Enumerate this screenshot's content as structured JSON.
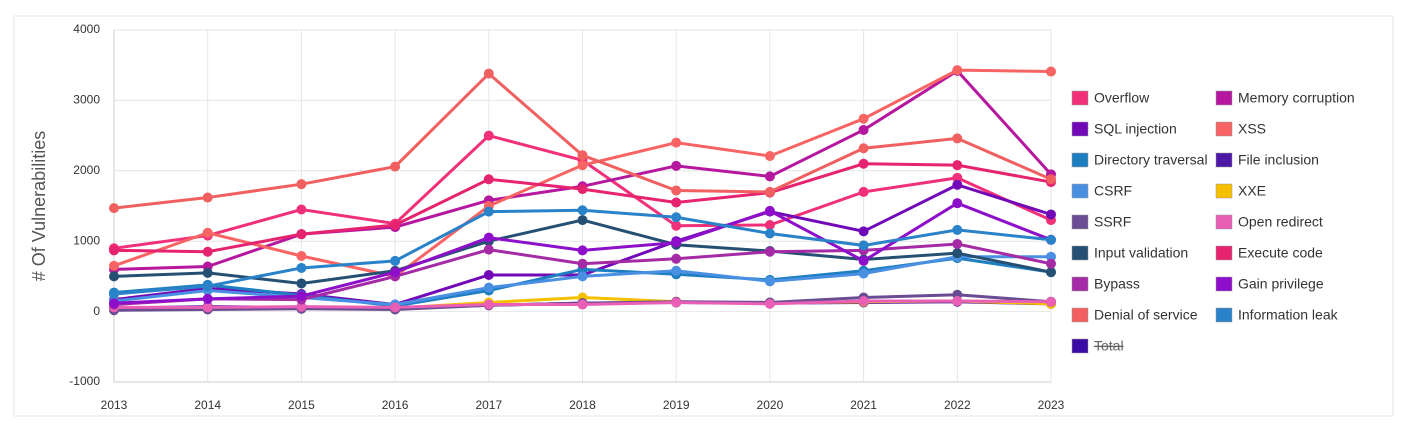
{
  "chart_data": {
    "type": "line",
    "y_label": "# Of Vulnerabilities",
    "x": [
      "2013",
      "2014",
      "2015",
      "2016",
      "2017",
      "2018",
      "2019",
      "2020",
      "2021",
      "2022",
      "2023"
    ],
    "ylim": [
      -1000,
      4000
    ],
    "yticks": [
      -1000,
      0,
      1000,
      2000,
      3000,
      4000
    ],
    "grid": true,
    "series": [
      {
        "name": "Overflow",
        "color": "#f0317a",
        "values": [
          900,
          1080,
          1450,
          1250,
          2500,
          2150,
          1220,
          1230,
          1700,
          1900,
          1300
        ]
      },
      {
        "name": "Memory corruption",
        "color": "#b5179e",
        "values": [
          600,
          640,
          1100,
          1200,
          1580,
          1780,
          2070,
          1920,
          2580,
          3420,
          1950
        ]
      },
      {
        "name": "SQL injection",
        "color": "#7209b7",
        "values": [
          170,
          330,
          250,
          100,
          520,
          520,
          1000,
          1420,
          1140,
          1800,
          1380
        ]
      },
      {
        "name": "XSS",
        "color": "#f86464",
        "values": [
          650,
          1120,
          790,
          500,
          1500,
          2080,
          2400,
          2210,
          2740,
          3430,
          3410
        ]
      },
      {
        "name": "Directory traversal",
        "color": "#1d7fc1",
        "values": [
          270,
          380,
          230,
          80,
          300,
          600,
          530,
          450,
          580,
          760,
          560
        ]
      },
      {
        "name": "File inclusion",
        "color": "#4d18a6",
        "values": [
          50,
          70,
          60,
          40,
          90,
          120,
          130,
          120,
          130,
          140,
          110
        ]
      },
      {
        "name": "CSRF",
        "color": "#4a90e2",
        "values": [
          150,
          300,
          200,
          100,
          340,
          500,
          580,
          430,
          540,
          780,
          780
        ]
      },
      {
        "name": "XXE",
        "color": "#f5c000",
        "values": [
          30,
          50,
          60,
          50,
          130,
          200,
          140,
          120,
          140,
          150,
          110
        ]
      },
      {
        "name": "SSRF",
        "color": "#6a4c93",
        "values": [
          20,
          30,
          40,
          30,
          90,
          120,
          140,
          130,
          200,
          240,
          140
        ]
      },
      {
        "name": "Open redirect",
        "color": "#e85fb5",
        "values": [
          60,
          60,
          70,
          60,
          100,
          100,
          130,
          110,
          150,
          150,
          140
        ]
      },
      {
        "name": "Input validation",
        "color": "#265073",
        "values": [
          500,
          550,
          400,
          580,
          1000,
          1300,
          950,
          860,
          740,
          830,
          560
        ]
      },
      {
        "name": "Execute code",
        "color": "#e6236f",
        "values": [
          870,
          850,
          1100,
          1230,
          1880,
          1740,
          1550,
          1690,
          2100,
          2080,
          1840
        ]
      },
      {
        "name": "Bypass",
        "color": "#a52aa5",
        "values": [
          100,
          180,
          170,
          500,
          880,
          680,
          750,
          850,
          870,
          960,
          680
        ]
      },
      {
        "name": "Gain privilege",
        "color": "#8e0fc9",
        "values": [
          120,
          180,
          220,
          560,
          1050,
          870,
          980,
          1430,
          720,
          1540,
          1020
        ]
      },
      {
        "name": "Denial of service",
        "color": "#f06060",
        "values": [
          1470,
          1620,
          1810,
          2060,
          3380,
          2220,
          1720,
          1700,
          2320,
          2460,
          1880
        ]
      },
      {
        "name": "Information leak",
        "color": "#2a82c9",
        "values": [
          250,
          360,
          620,
          720,
          1420,
          1440,
          1340,
          1110,
          940,
          1160,
          1020
        ]
      },
      {
        "name": "Total",
        "color": "#3a0ca3",
        "visible": false,
        "values": [
          null,
          null,
          null,
          null,
          null,
          null,
          null,
          null,
          null,
          null,
          null
        ]
      }
    ]
  }
}
